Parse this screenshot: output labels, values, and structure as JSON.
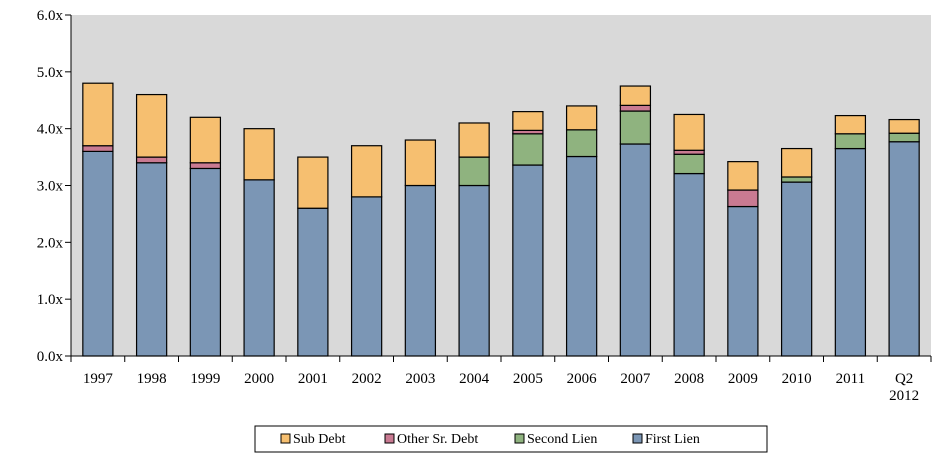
{
  "chart_data": {
    "type": "bar",
    "stacked": true,
    "categories": [
      "1997",
      "1998",
      "1999",
      "2000",
      "2001",
      "2002",
      "2003",
      "2004",
      "2005",
      "2006",
      "2007",
      "2008",
      "2009",
      "2010",
      "2011",
      "Q2 2012"
    ],
    "series": [
      {
        "name": "First Lien",
        "color": "#7b96b5",
        "values": [
          3.6,
          3.4,
          3.3,
          3.1,
          2.6,
          2.8,
          3.0,
          3.0,
          3.36,
          3.51,
          3.73,
          3.21,
          2.63,
          3.06,
          3.65,
          3.77
        ]
      },
      {
        "name": "Second Lien",
        "color": "#8fb37f",
        "values": [
          0,
          0,
          0,
          0,
          0,
          0,
          0,
          0.5,
          0.55,
          0.47,
          0.58,
          0.34,
          0,
          0.09,
          0.26,
          0.15
        ]
      },
      {
        "name": "Other Sr. Debt",
        "color": "#c97a92",
        "values": [
          0.1,
          0.1,
          0.1,
          0,
          0,
          0,
          0,
          0,
          0.06,
          0,
          0.1,
          0.07,
          0.29,
          0,
          0,
          0
        ]
      },
      {
        "name": "Sub Debt",
        "color": "#f6bf70",
        "values": [
          1.1,
          1.1,
          0.8,
          0.9,
          0.9,
          0.9,
          0.8,
          0.6,
          0.33,
          0.42,
          0.34,
          0.63,
          0.5,
          0.5,
          0.32,
          0.24
        ]
      }
    ],
    "legend_order": [
      "Sub Debt",
      "Other Sr. Debt",
      "Second Lien",
      "First Lien"
    ],
    "ylim": [
      0,
      6
    ],
    "yticks": [
      "0.0x",
      "1.0x",
      "2.0x",
      "3.0x",
      "4.0x",
      "5.0x",
      "6.0x"
    ],
    "grid": false,
    "legend_position": "bottom-center",
    "plot_background": "#d9d9d9"
  }
}
